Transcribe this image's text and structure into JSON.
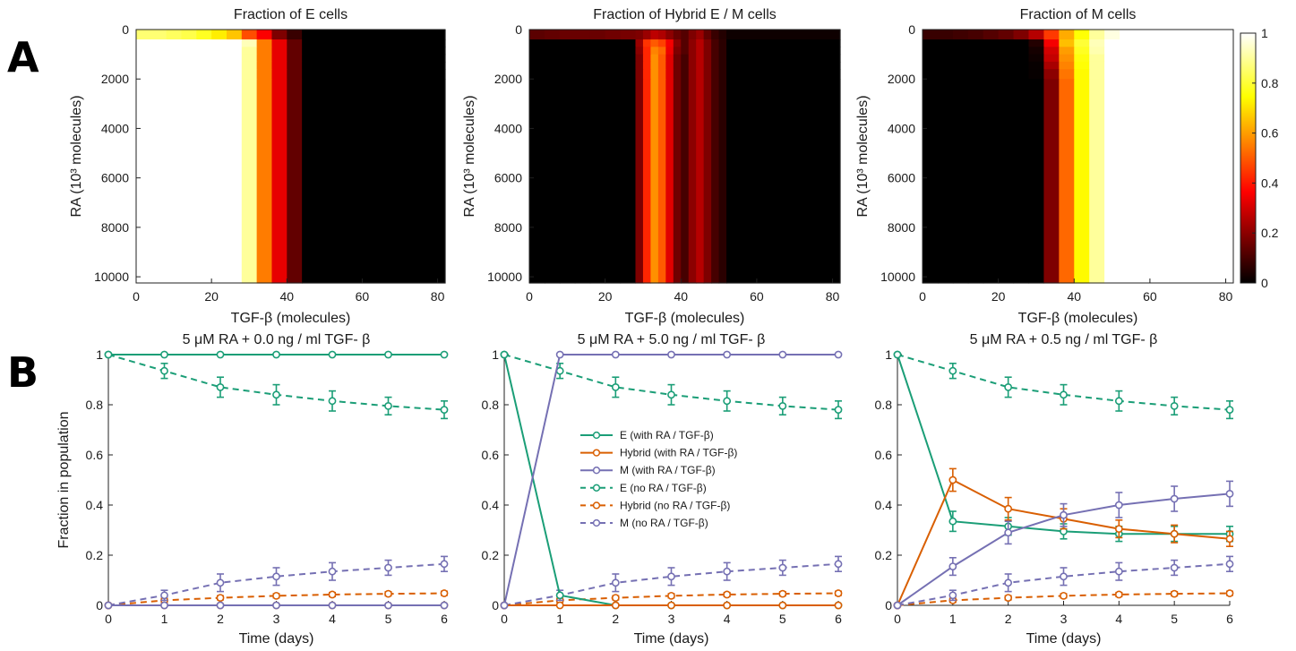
{
  "panel_labels": [
    "A",
    "B"
  ],
  "chart_data": [
    {
      "type": "heatmap",
      "title": "Fraction of E cells",
      "xlabel": "TGF-β (molecules)",
      "ylabel": "RA (10³ molecules)",
      "xlim": [
        0,
        82
      ],
      "ylim": [
        0,
        10250
      ],
      "xticks": [
        "0",
        "20",
        "40",
        "60",
        "80"
      ],
      "yticks": [
        "0",
        "2000",
        "4000",
        "6000",
        "8000",
        "10000"
      ],
      "cmap": "hot",
      "x_edges": [
        0,
        4,
        8,
        12,
        16,
        20,
        24,
        28,
        32,
        36,
        40,
        44,
        82
      ],
      "y_edges": [
        0,
        400,
        700,
        1000,
        1300,
        1600,
        2000,
        10250
      ],
      "values": [
        [
          0.86,
          0.86,
          0.84,
          0.82,
          0.78,
          0.72,
          0.66,
          0.48,
          0.36,
          0.18,
          0.08,
          0.0
        ],
        [
          1,
          1,
          1,
          1,
          1,
          1,
          1,
          0.93,
          0.55,
          0.33,
          0.14,
          0.0
        ],
        [
          1,
          1,
          1,
          1,
          1,
          1,
          1,
          0.9,
          0.55,
          0.33,
          0.14,
          0.0
        ],
        [
          1,
          1,
          1,
          1,
          1,
          1,
          1,
          0.9,
          0.55,
          0.33,
          0.14,
          0.0
        ],
        [
          1,
          1,
          1,
          1,
          1,
          1,
          1,
          0.9,
          0.55,
          0.33,
          0.14,
          0.0
        ],
        [
          1,
          1,
          1,
          1,
          1,
          1,
          1,
          0.9,
          0.55,
          0.33,
          0.14,
          0.0
        ],
        [
          1,
          1,
          1,
          1,
          1,
          1,
          1,
          0.9,
          0.55,
          0.33,
          0.14,
          0.0
        ]
      ]
    },
    {
      "type": "heatmap",
      "title": "Fraction of Hybrid E / M cells",
      "xlabel": "TGF-β (molecules)",
      "ylabel": "RA (10³ molecules)",
      "xlim": [
        0,
        82
      ],
      "ylim": [
        0,
        10250
      ],
      "xticks": [
        "0",
        "20",
        "40",
        "60",
        "80"
      ],
      "yticks": [
        "0",
        "2000",
        "4000",
        "6000",
        "8000",
        "10000"
      ],
      "cmap": "hot",
      "x_edges": [
        0,
        4,
        8,
        12,
        16,
        20,
        24,
        28,
        30,
        32,
        34,
        36,
        38,
        40,
        42,
        44,
        46,
        48,
        50,
        52,
        82
      ],
      "y_edges": [
        0,
        400,
        700,
        1000,
        1300,
        1600,
        2000,
        10250
      ],
      "values": [
        [
          0.13,
          0.14,
          0.15,
          0.15,
          0.15,
          0.16,
          0.17,
          0.18,
          0.22,
          0.27,
          0.25,
          0.2,
          0.15,
          0.12,
          0.18,
          0.22,
          0.14,
          0.08,
          0.05,
          0.02
        ],
        [
          0.0,
          0.0,
          0.0,
          0.0,
          0.0,
          0.0,
          0.0,
          0.22,
          0.44,
          0.5,
          0.46,
          0.35,
          0.2,
          0.12,
          0.2,
          0.26,
          0.18,
          0.1,
          0.06,
          0.0
        ],
        [
          0.0,
          0.0,
          0.0,
          0.0,
          0.0,
          0.0,
          0.0,
          0.2,
          0.42,
          0.56,
          0.52,
          0.34,
          0.18,
          0.12,
          0.2,
          0.26,
          0.18,
          0.1,
          0.06,
          0.0
        ],
        [
          0.0,
          0.0,
          0.0,
          0.0,
          0.0,
          0.0,
          0.0,
          0.18,
          0.42,
          0.58,
          0.5,
          0.32,
          0.16,
          0.1,
          0.2,
          0.26,
          0.18,
          0.1,
          0.06,
          0.0
        ],
        [
          0.0,
          0.0,
          0.0,
          0.0,
          0.0,
          0.0,
          0.0,
          0.18,
          0.42,
          0.58,
          0.5,
          0.32,
          0.16,
          0.1,
          0.2,
          0.26,
          0.18,
          0.1,
          0.06,
          0.0
        ],
        [
          0.0,
          0.0,
          0.0,
          0.0,
          0.0,
          0.0,
          0.0,
          0.18,
          0.42,
          0.58,
          0.5,
          0.32,
          0.16,
          0.1,
          0.2,
          0.26,
          0.18,
          0.1,
          0.06,
          0.0
        ],
        [
          0.0,
          0.0,
          0.0,
          0.0,
          0.0,
          0.0,
          0.0,
          0.18,
          0.42,
          0.58,
          0.5,
          0.32,
          0.16,
          0.1,
          0.2,
          0.26,
          0.18,
          0.1,
          0.06,
          0.0
        ]
      ]
    },
    {
      "type": "heatmap",
      "title": "Fraction of M cells",
      "xlabel": "TGF-β (molecules)",
      "ylabel": "RA (10³ molecules)",
      "xlim": [
        0,
        82
      ],
      "ylim": [
        0,
        10250
      ],
      "xticks": [
        "0",
        "20",
        "40",
        "60",
        "80"
      ],
      "yticks": [
        "0",
        "2000",
        "4000",
        "6000",
        "8000",
        "10000"
      ],
      "cmap": "hot",
      "x_edges": [
        0,
        4,
        8,
        12,
        16,
        20,
        24,
        28,
        32,
        36,
        40,
        44,
        48,
        52,
        82
      ],
      "y_edges": [
        0,
        400,
        700,
        1000,
        1300,
        1600,
        2000,
        10250
      ],
      "values": [
        [
          0.08,
          0.08,
          0.09,
          0.1,
          0.12,
          0.14,
          0.18,
          0.26,
          0.45,
          0.62,
          0.75,
          0.9,
          0.97,
          1.0
        ],
        [
          0.0,
          0.0,
          0.0,
          0.0,
          0.0,
          0.0,
          0.0,
          0.05,
          0.35,
          0.65,
          0.8,
          0.93,
          1.0,
          1.0
        ],
        [
          0.0,
          0.0,
          0.0,
          0.0,
          0.0,
          0.0,
          0.0,
          0.03,
          0.3,
          0.6,
          0.78,
          0.92,
          1.0,
          1.0
        ],
        [
          0.0,
          0.0,
          0.0,
          0.0,
          0.0,
          0.0,
          0.0,
          0.02,
          0.28,
          0.58,
          0.76,
          0.9,
          1.0,
          1.0
        ],
        [
          0.0,
          0.0,
          0.0,
          0.0,
          0.0,
          0.0,
          0.0,
          0.01,
          0.24,
          0.56,
          0.75,
          0.9,
          1.0,
          1.0
        ],
        [
          0.0,
          0.0,
          0.0,
          0.0,
          0.0,
          0.0,
          0.0,
          0.01,
          0.2,
          0.54,
          0.74,
          0.9,
          1.0,
          1.0
        ],
        [
          0.0,
          0.0,
          0.0,
          0.0,
          0.0,
          0.0,
          0.0,
          0.0,
          0.18,
          0.52,
          0.74,
          0.9,
          1.0,
          1.0
        ]
      ]
    },
    {
      "type": "line",
      "title": "5 μM RA + 0.0 ng / ml TGF- β",
      "xlabel": "Time (days)",
      "ylabel": "Fraction in population",
      "xlim": [
        0,
        6
      ],
      "ylim": [
        0,
        1
      ],
      "x": [
        0,
        1,
        2,
        3,
        4,
        5,
        6
      ],
      "xticks": [
        "0",
        "1",
        "2",
        "3",
        "4",
        "5",
        "6"
      ],
      "yticks": [
        "0",
        "0.2",
        "0.4",
        "0.6",
        "0.8",
        "1"
      ],
      "series": [
        {
          "name": "E (with RA / TGF-β)",
          "color": "#1b9e77",
          "dash": false,
          "values": [
            1,
            1,
            1,
            1,
            1,
            1,
            1
          ],
          "err": [
            0,
            0,
            0,
            0,
            0,
            0,
            0
          ]
        },
        {
          "name": "Hybrid (with RA / TGF-β)",
          "color": "#d95f02",
          "dash": false,
          "values": [
            0,
            0,
            0,
            0,
            0,
            0,
            0
          ],
          "err": [
            0,
            0,
            0,
            0,
            0,
            0,
            0
          ]
        },
        {
          "name": "M (with RA / TGF-β)",
          "color": "#7570b3",
          "dash": false,
          "values": [
            0,
            0,
            0,
            0,
            0,
            0,
            0
          ],
          "err": [
            0,
            0,
            0,
            0,
            0,
            0,
            0
          ]
        },
        {
          "name": "E (no RA / TGF-β)",
          "color": "#1b9e77",
          "dash": true,
          "values": [
            1,
            0.935,
            0.87,
            0.84,
            0.815,
            0.795,
            0.78
          ],
          "err": [
            0,
            0.03,
            0.04,
            0.04,
            0.04,
            0.035,
            0.035
          ]
        },
        {
          "name": "Hybrid (no RA / TGF-β)",
          "color": "#d95f02",
          "dash": true,
          "values": [
            0,
            0.02,
            0.03,
            0.038,
            0.043,
            0.046,
            0.048
          ],
          "err": [
            0,
            0.008,
            0.008,
            0.008,
            0.008,
            0.008,
            0.008
          ]
        },
        {
          "name": "M (no RA / TGF-β)",
          "color": "#7570b3",
          "dash": true,
          "values": [
            0,
            0.04,
            0.09,
            0.115,
            0.135,
            0.15,
            0.165
          ],
          "err": [
            0,
            0.02,
            0.035,
            0.035,
            0.035,
            0.03,
            0.03
          ]
        }
      ]
    },
    {
      "type": "line",
      "title": "5 μM RA + 5.0 ng / ml TGF- β",
      "xlabel": "Time (days)",
      "ylabel": "",
      "xlim": [
        0,
        6
      ],
      "ylim": [
        0,
        1
      ],
      "x": [
        0,
        1,
        2,
        3,
        4,
        5,
        6
      ],
      "xticks": [
        "0",
        "1",
        "2",
        "3",
        "4",
        "5",
        "6"
      ],
      "yticks": [
        "0",
        "0.2",
        "0.4",
        "0.6",
        "0.8",
        "1"
      ],
      "legend": "center",
      "series": [
        {
          "name": "E (with RA / TGF-β)",
          "color": "#1b9e77",
          "dash": false,
          "values": [
            1,
            0.04,
            0.0,
            0.0,
            0.0,
            0.0,
            0.0
          ],
          "err": [
            0,
            0,
            0,
            0,
            0,
            0,
            0
          ]
        },
        {
          "name": "Hybrid (with RA / TGF-β)",
          "color": "#d95f02",
          "dash": false,
          "values": [
            0,
            0,
            0,
            0,
            0,
            0,
            0
          ],
          "err": [
            0,
            0,
            0,
            0,
            0,
            0,
            0
          ]
        },
        {
          "name": "M (with RA / TGF-β)",
          "color": "#7570b3",
          "dash": false,
          "values": [
            0,
            1,
            1,
            1,
            1,
            1,
            1
          ],
          "err": [
            0,
            0,
            0,
            0,
            0,
            0,
            0
          ]
        },
        {
          "name": "E (no RA / TGF-β)",
          "color": "#1b9e77",
          "dash": true,
          "values": [
            1,
            0.935,
            0.87,
            0.84,
            0.815,
            0.795,
            0.78
          ],
          "err": [
            0,
            0.03,
            0.04,
            0.04,
            0.04,
            0.035,
            0.035
          ]
        },
        {
          "name": "Hybrid (no RA / TGF-β)",
          "color": "#d95f02",
          "dash": true,
          "values": [
            0,
            0.02,
            0.03,
            0.038,
            0.043,
            0.046,
            0.048
          ],
          "err": [
            0,
            0.008,
            0.008,
            0.008,
            0.008,
            0.008,
            0.008
          ]
        },
        {
          "name": "M (no RA / TGF-β)",
          "color": "#7570b3",
          "dash": true,
          "values": [
            0,
            0.04,
            0.09,
            0.115,
            0.135,
            0.15,
            0.165
          ],
          "err": [
            0,
            0.02,
            0.035,
            0.035,
            0.035,
            0.03,
            0.03
          ]
        }
      ]
    },
    {
      "type": "line",
      "title": "5 μM RA + 0.5 ng / ml TGF- β",
      "xlabel": "Time (days)",
      "ylabel": "",
      "xlim": [
        0,
        6
      ],
      "ylim": [
        0,
        1
      ],
      "x": [
        0,
        1,
        2,
        3,
        4,
        5,
        6
      ],
      "xticks": [
        "0",
        "1",
        "2",
        "3",
        "4",
        "5",
        "6"
      ],
      "yticks": [
        "0",
        "0.2",
        "0.4",
        "0.6",
        "0.8",
        "1"
      ],
      "series": [
        {
          "name": "E (with RA / TGF-β)",
          "color": "#1b9e77",
          "dash": false,
          "values": [
            1,
            0.335,
            0.315,
            0.295,
            0.285,
            0.285,
            0.285
          ],
          "err": [
            0,
            0.04,
            0.035,
            0.03,
            0.03,
            0.03,
            0.03
          ]
        },
        {
          "name": "Hybrid (with RA / TGF-β)",
          "color": "#d95f02",
          "dash": false,
          "values": [
            0,
            0.5,
            0.385,
            0.345,
            0.305,
            0.285,
            0.265
          ],
          "err": [
            0,
            0.045,
            0.045,
            0.04,
            0.035,
            0.035,
            0.03
          ]
        },
        {
          "name": "M (with RA / TGF-β)",
          "color": "#7570b3",
          "dash": false,
          "values": [
            0,
            0.155,
            0.29,
            0.36,
            0.4,
            0.425,
            0.445
          ],
          "err": [
            0,
            0.035,
            0.045,
            0.045,
            0.05,
            0.05,
            0.05
          ]
        },
        {
          "name": "E (no RA / TGF-β)",
          "color": "#1b9e77",
          "dash": true,
          "values": [
            1,
            0.935,
            0.87,
            0.84,
            0.815,
            0.795,
            0.78
          ],
          "err": [
            0,
            0.03,
            0.04,
            0.04,
            0.04,
            0.035,
            0.035
          ]
        },
        {
          "name": "Hybrid (no RA / TGF-β)",
          "color": "#d95f02",
          "dash": true,
          "values": [
            0,
            0.02,
            0.03,
            0.038,
            0.043,
            0.046,
            0.048
          ],
          "err": [
            0,
            0.008,
            0.008,
            0.008,
            0.008,
            0.008,
            0.008
          ]
        },
        {
          "name": "M (no RA / TGF-β)",
          "color": "#7570b3",
          "dash": true,
          "values": [
            0,
            0.04,
            0.09,
            0.115,
            0.135,
            0.15,
            0.165
          ],
          "err": [
            0,
            0.02,
            0.035,
            0.035,
            0.035,
            0.03,
            0.03
          ]
        }
      ]
    }
  ],
  "colorbar": {
    "ticks": [
      "0",
      "0.2",
      "0.4",
      "0.6",
      "0.8",
      "1"
    ],
    "range": [
      0,
      1
    ],
    "cmap": "hot"
  }
}
